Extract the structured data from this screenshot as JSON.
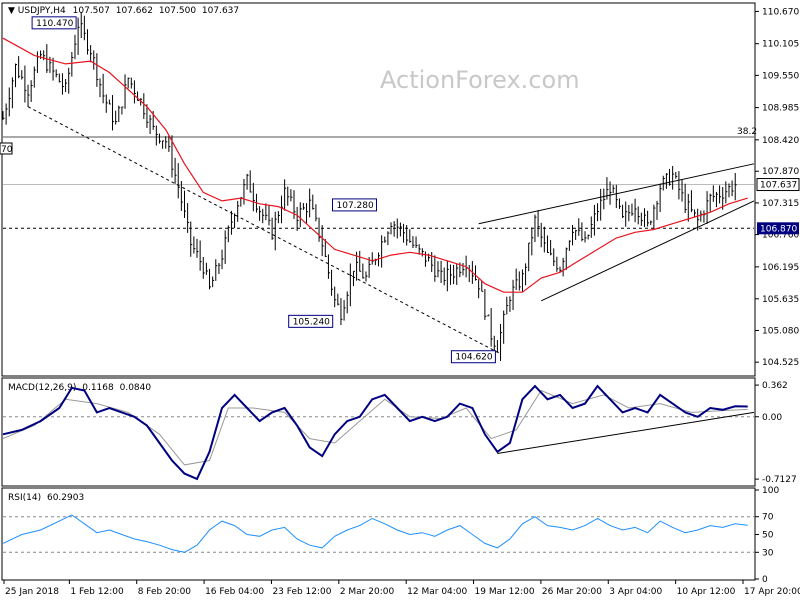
{
  "chart_data": [
    {
      "type": "candlestick",
      "header": {
        "symbol": "USDJPY,H4",
        "ohlc": [
          "107.507",
          "107.662",
          "107.500",
          "107.637"
        ]
      },
      "watermark": "ActionForex.com",
      "y_ticks": [
        "110.670",
        "110.105",
        "109.550",
        "108.985",
        "108.420",
        "107.870",
        "107.315",
        "106.760",
        "106.195",
        "105.635",
        "105.080",
        "104.525"
      ],
      "ylim": [
        104.3,
        110.8
      ],
      "current_price": "107.637",
      "fib_level": {
        "label": "38.2",
        "value": 108.47,
        "left_tag": "70"
      },
      "support_level": {
        "label": "106.870",
        "value": 106.87
      },
      "price_labels": [
        {
          "label": "110.470",
          "value": 110.47
        },
        {
          "label": "107.280",
          "value": 107.28
        },
        {
          "label": "105.240",
          "value": 105.24
        },
        {
          "label": "104.620",
          "value": 104.62
        }
      ],
      "x_labels": [
        "25 Jan 2018",
        "1 Feb 12:00",
        "8 Feb 20:00",
        "16 Feb 04:00",
        "23 Feb 12:00",
        "2 Mar 20:00",
        "12 Mar 04:00",
        "19 Mar 12:00",
        "26 Mar 20:00",
        "3 Apr 04:00",
        "10 Apr 12:00",
        "17 Apr 20:00"
      ],
      "close_path_points": [
        [
          0,
          108.8
        ],
        [
          4,
          109.7
        ],
        [
          8,
          109.3
        ],
        [
          12,
          109.9
        ],
        [
          16,
          109.6
        ],
        [
          20,
          109.3
        ],
        [
          24,
          110.45
        ],
        [
          28,
          110.0
        ],
        [
          32,
          109.2
        ],
        [
          36,
          108.7
        ],
        [
          40,
          109.5
        ],
        [
          44,
          109.1
        ],
        [
          48,
          108.6
        ],
        [
          52,
          108.4
        ],
        [
          56,
          107.6
        ],
        [
          60,
          106.6
        ],
        [
          64,
          106.2
        ],
        [
          66,
          105.8
        ],
        [
          70,
          106.4
        ],
        [
          74,
          107.2
        ],
        [
          78,
          107.7
        ],
        [
          82,
          107.2
        ],
        [
          86,
          106.8
        ],
        [
          90,
          107.5
        ],
        [
          94,
          107.1
        ],
        [
          98,
          107.3
        ],
        [
          102,
          106.6
        ],
        [
          106,
          105.6
        ],
        [
          108,
          105.4
        ],
        [
          112,
          106.2
        ],
        [
          116,
          106.0
        ],
        [
          120,
          106.5
        ],
        [
          124,
          107.0
        ],
        [
          128,
          106.8
        ],
        [
          132,
          106.5
        ],
        [
          136,
          106.3
        ],
        [
          140,
          106.0
        ],
        [
          144,
          106.1
        ],
        [
          148,
          106.3
        ],
        [
          152,
          105.9
        ],
        [
          156,
          105.0
        ],
        [
          158,
          104.8
        ],
        [
          162,
          105.7
        ],
        [
          166,
          106.0
        ],
        [
          170,
          107.0
        ],
        [
          174,
          106.4
        ],
        [
          178,
          106.2
        ],
        [
          182,
          106.9
        ],
        [
          186,
          106.6
        ],
        [
          190,
          107.2
        ],
        [
          194,
          107.6
        ],
        [
          198,
          107.0
        ],
        [
          202,
          107.3
        ],
        [
          206,
          106.9
        ],
        [
          210,
          107.6
        ],
        [
          214,
          107.8
        ],
        [
          218,
          107.3
        ],
        [
          222,
          107.0
        ],
        [
          226,
          107.4
        ],
        [
          230,
          107.5
        ],
        [
          234,
          107.64
        ]
      ],
      "ma_points": [
        [
          0,
          110.2
        ],
        [
          10,
          109.9
        ],
        [
          20,
          109.75
        ],
        [
          28,
          109.8
        ],
        [
          34,
          109.6
        ],
        [
          40,
          109.3
        ],
        [
          46,
          109.0
        ],
        [
          52,
          108.6
        ],
        [
          58,
          108.0
        ],
        [
          64,
          107.5
        ],
        [
          70,
          107.35
        ],
        [
          76,
          107.4
        ],
        [
          82,
          107.3
        ],
        [
          88,
          107.25
        ],
        [
          94,
          107.1
        ],
        [
          100,
          106.8
        ],
        [
          106,
          106.5
        ],
        [
          112,
          106.4
        ],
        [
          118,
          106.3
        ],
        [
          124,
          106.4
        ],
        [
          130,
          106.45
        ],
        [
          136,
          106.4
        ],
        [
          142,
          106.3
        ],
        [
          148,
          106.2
        ],
        [
          154,
          105.9
        ],
        [
          160,
          105.75
        ],
        [
          166,
          105.75
        ],
        [
          172,
          106.0
        ],
        [
          178,
          106.1
        ],
        [
          184,
          106.3
        ],
        [
          190,
          106.5
        ],
        [
          196,
          106.7
        ],
        [
          202,
          106.8
        ],
        [
          208,
          106.85
        ],
        [
          214,
          106.95
        ],
        [
          220,
          107.05
        ],
        [
          226,
          107.15
        ],
        [
          232,
          107.3
        ],
        [
          238,
          107.4
        ]
      ],
      "trendlines": [
        {
          "name": "falling",
          "points": [
            [
              8,
              109.0
            ],
            [
              158,
              104.7
            ]
          ]
        },
        {
          "name": "channel-upper",
          "points": [
            [
              152,
              106.95
            ],
            [
              240,
              108.0
            ]
          ]
        },
        {
          "name": "channel-lower",
          "points": [
            [
              172,
              105.6
            ],
            [
              240,
              107.35
            ]
          ]
        }
      ],
      "x_range": [
        0,
        240
      ]
    },
    {
      "type": "line",
      "header": {
        "title": "MACD(12,26,9)",
        "values": [
          "0.1168",
          "0.0840"
        ]
      },
      "y_ticks": [
        "0.362",
        "0.00",
        "-0.7127"
      ],
      "ylim": [
        -0.78,
        0.42
      ],
      "zero": 0.0,
      "macd_points": [
        [
          0,
          -0.2
        ],
        [
          6,
          -0.15
        ],
        [
          12,
          -0.05
        ],
        [
          18,
          0.1
        ],
        [
          22,
          0.33
        ],
        [
          26,
          0.3
        ],
        [
          30,
          0.05
        ],
        [
          34,
          0.1
        ],
        [
          38,
          0.05
        ],
        [
          42,
          0.0
        ],
        [
          46,
          -0.1
        ],
        [
          50,
          -0.3
        ],
        [
          54,
          -0.5
        ],
        [
          58,
          -0.65
        ],
        [
          62,
          -0.71
        ],
        [
          66,
          -0.4
        ],
        [
          70,
          0.1
        ],
        [
          74,
          0.25
        ],
        [
          78,
          0.1
        ],
        [
          82,
          -0.05
        ],
        [
          86,
          0.05
        ],
        [
          90,
          0.1
        ],
        [
          94,
          -0.1
        ],
        [
          98,
          -0.35
        ],
        [
          102,
          -0.45
        ],
        [
          106,
          -0.2
        ],
        [
          110,
          -0.05
        ],
        [
          114,
          0.0
        ],
        [
          118,
          0.2
        ],
        [
          122,
          0.25
        ],
        [
          126,
          0.1
        ],
        [
          130,
          -0.05
        ],
        [
          134,
          0.0
        ],
        [
          138,
          -0.05
        ],
        [
          142,
          0.0
        ],
        [
          146,
          0.15
        ],
        [
          150,
          0.1
        ],
        [
          154,
          -0.2
        ],
        [
          158,
          -0.4
        ],
        [
          162,
          -0.3
        ],
        [
          166,
          0.2
        ],
        [
          170,
          0.35
        ],
        [
          174,
          0.2
        ],
        [
          178,
          0.25
        ],
        [
          182,
          0.1
        ],
        [
          186,
          0.15
        ],
        [
          190,
          0.35
        ],
        [
          194,
          0.2
        ],
        [
          198,
          0.05
        ],
        [
          202,
          0.1
        ],
        [
          206,
          0.05
        ],
        [
          210,
          0.25
        ],
        [
          214,
          0.15
        ],
        [
          218,
          0.05
        ],
        [
          222,
          0.0
        ],
        [
          226,
          0.1
        ],
        [
          230,
          0.08
        ],
        [
          234,
          0.12
        ],
        [
          238,
          0.1168
        ]
      ],
      "signal_points": [
        [
          0,
          -0.25
        ],
        [
          10,
          -0.1
        ],
        [
          20,
          0.2
        ],
        [
          30,
          0.15
        ],
        [
          40,
          0.05
        ],
        [
          50,
          -0.2
        ],
        [
          58,
          -0.55
        ],
        [
          66,
          -0.5
        ],
        [
          72,
          0.1
        ],
        [
          80,
          0.1
        ],
        [
          90,
          0.05
        ],
        [
          98,
          -0.25
        ],
        [
          106,
          -0.3
        ],
        [
          114,
          -0.05
        ],
        [
          122,
          0.2
        ],
        [
          130,
          0.0
        ],
        [
          140,
          -0.02
        ],
        [
          148,
          0.1
        ],
        [
          156,
          -0.25
        ],
        [
          164,
          -0.15
        ],
        [
          172,
          0.3
        ],
        [
          182,
          0.15
        ],
        [
          192,
          0.25
        ],
        [
          200,
          0.1
        ],
        [
          210,
          0.15
        ],
        [
          220,
          0.05
        ],
        [
          230,
          0.07
        ],
        [
          238,
          0.084
        ]
      ],
      "trendline": {
        "points": [
          [
            158,
            -0.42
          ],
          [
            240,
            0.05
          ]
        ]
      }
    },
    {
      "type": "line",
      "header": {
        "title": "RSI(14)",
        "value": "60.2903"
      },
      "y_ticks": [
        "100",
        "70",
        "50",
        "30",
        "0"
      ],
      "ylim": [
        0,
        100
      ],
      "rsi_points": [
        [
          0,
          40
        ],
        [
          6,
          50
        ],
        [
          12,
          55
        ],
        [
          18,
          65
        ],
        [
          22,
          72
        ],
        [
          26,
          62
        ],
        [
          30,
          52
        ],
        [
          34,
          55
        ],
        [
          38,
          50
        ],
        [
          42,
          45
        ],
        [
          46,
          42
        ],
        [
          50,
          38
        ],
        [
          54,
          33
        ],
        [
          58,
          30
        ],
        [
          62,
          38
        ],
        [
          66,
          55
        ],
        [
          70,
          65
        ],
        [
          74,
          60
        ],
        [
          78,
          50
        ],
        [
          82,
          48
        ],
        [
          86,
          55
        ],
        [
          90,
          58
        ],
        [
          94,
          45
        ],
        [
          98,
          38
        ],
        [
          102,
          35
        ],
        [
          106,
          48
        ],
        [
          110,
          55
        ],
        [
          114,
          60
        ],
        [
          118,
          68
        ],
        [
          122,
          62
        ],
        [
          126,
          55
        ],
        [
          130,
          50
        ],
        [
          134,
          52
        ],
        [
          138,
          48
        ],
        [
          142,
          55
        ],
        [
          146,
          60
        ],
        [
          150,
          50
        ],
        [
          154,
          40
        ],
        [
          158,
          35
        ],
        [
          162,
          45
        ],
        [
          166,
          62
        ],
        [
          170,
          70
        ],
        [
          174,
          60
        ],
        [
          178,
          58
        ],
        [
          182,
          55
        ],
        [
          186,
          60
        ],
        [
          190,
          68
        ],
        [
          194,
          60
        ],
        [
          198,
          55
        ],
        [
          202,
          58
        ],
        [
          206,
          52
        ],
        [
          210,
          65
        ],
        [
          214,
          58
        ],
        [
          218,
          52
        ],
        [
          222,
          55
        ],
        [
          226,
          60
        ],
        [
          230,
          58
        ],
        [
          234,
          62
        ],
        [
          238,
          60.29
        ]
      ]
    }
  ]
}
